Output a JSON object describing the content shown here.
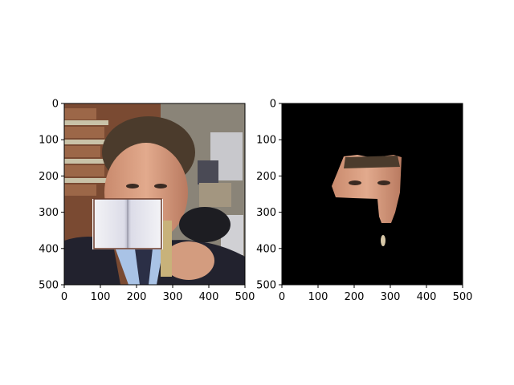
{
  "figure": {
    "panels": [
      {
        "name": "original-with-occluder",
        "x_ticks": [
          "0",
          "100",
          "200",
          "300",
          "400",
          "500"
        ],
        "y_ticks": [
          "0",
          "100",
          "200",
          "300",
          "400",
          "500"
        ],
        "xlim": [
          0,
          500
        ],
        "ylim": [
          500,
          0
        ]
      },
      {
        "name": "segmentation-mask",
        "x_ticks": [
          "0",
          "100",
          "200",
          "300",
          "400",
          "500"
        ],
        "y_ticks": [
          "0",
          "100",
          "200",
          "300",
          "400",
          "500"
        ],
        "xlim": [
          0,
          500
        ],
        "ylim": [
          500,
          0
        ]
      }
    ]
  }
}
